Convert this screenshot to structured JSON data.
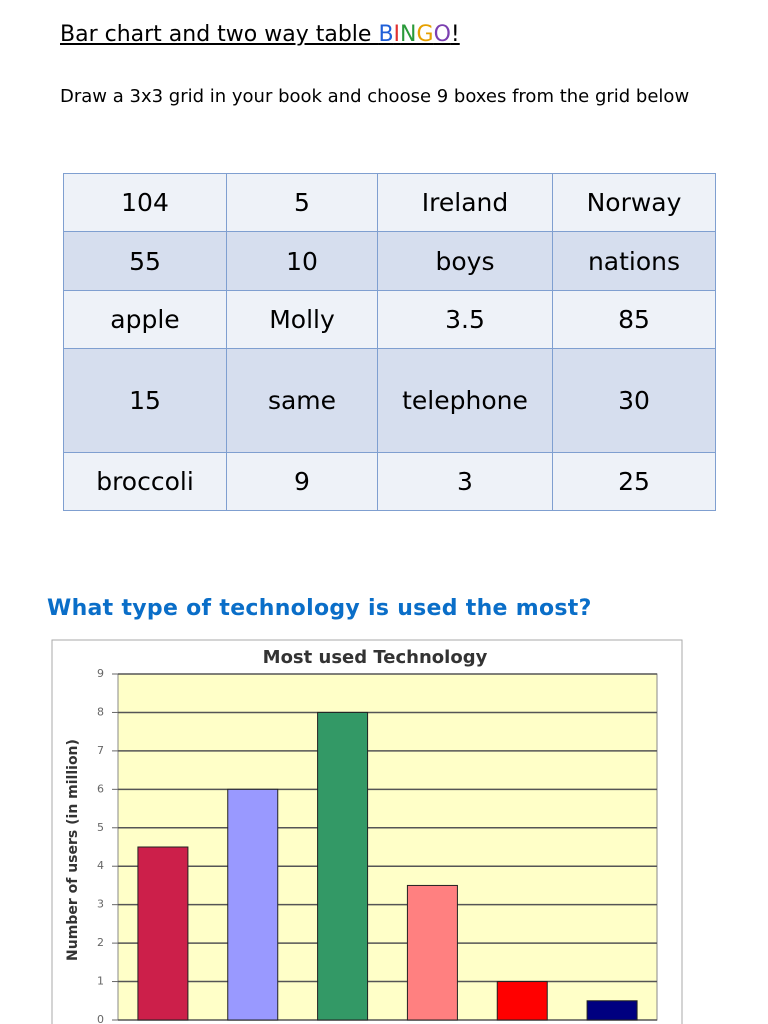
{
  "header": {
    "title": [
      "Bar chart and two way table ",
      "B",
      "I",
      "N",
      "G",
      "O",
      "!"
    ],
    "instructions": "Draw a 3x3 grid in your book and choose 9 boxes from the grid below"
  },
  "table": {
    "rows": [
      [
        "104",
        "5",
        "Ireland",
        "Norway"
      ],
      [
        "55",
        "10",
        "boys",
        "nations"
      ],
      [
        "apple",
        "Molly",
        "3.5",
        "85"
      ],
      [
        "15",
        "same",
        "telephone",
        "30"
      ],
      [
        "broccoli",
        "9",
        "3",
        "25"
      ]
    ]
  },
  "question": "What type of technology is used the most?",
  "chart_data": {
    "type": "bar",
    "title": "Most used Technology",
    "y_label": "Number of users (in million)",
    "categories": [
      null,
      null,
      null,
      null,
      null,
      null
    ],
    "values": [
      4.5,
      6,
      8,
      3.5,
      1,
      0.5
    ],
    "colors": [
      "#cc1f4a",
      "#9999ff",
      "#339966",
      "#ff8080",
      "#ff0000",
      "#000080"
    ],
    "ylim": [
      0,
      9
    ],
    "yticks": [
      0,
      1,
      2,
      3,
      4,
      5,
      6,
      7,
      8,
      9
    ],
    "grid": true
  }
}
